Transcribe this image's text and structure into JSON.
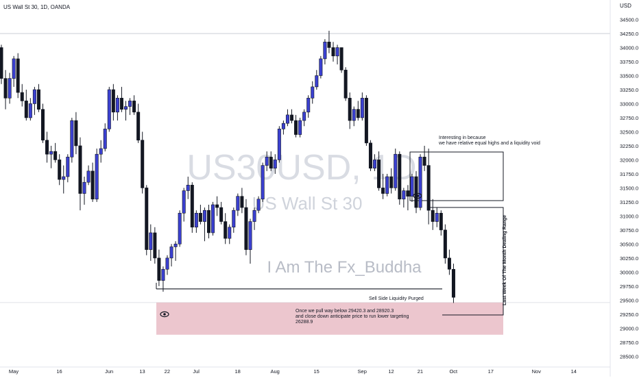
{
  "header": {
    "symbol_title": "US Wall St 30, 1D, OANDA"
  },
  "watermark": {
    "ticker": "US30USD, 1D",
    "name": "US Wall St 30",
    "author": "I Am The Fx_Buddha"
  },
  "price_axis": {
    "unit": "USD",
    "ticks": [
      "34500.0",
      "34250.0",
      "34000.0",
      "33750.0",
      "33500.0",
      "33250.0",
      "33000.0",
      "32750.0",
      "32500.0",
      "32250.0",
      "32000.0",
      "31750.0",
      "31500.0",
      "31250.0",
      "31000.0",
      "30750.0",
      "30500.0",
      "30250.0",
      "30000.0",
      "29750.0",
      "29500.0",
      "29250.0",
      "29000.0",
      "28750.0",
      "28500.0"
    ]
  },
  "time_axis": {
    "labels": [
      {
        "text": "May",
        "index": 0
      },
      {
        "text": "16",
        "index": 11
      },
      {
        "text": "Jun",
        "index": 23
      },
      {
        "text": "13",
        "index": 31
      },
      {
        "text": "22",
        "index": 37
      },
      {
        "text": "Jul",
        "index": 44
      },
      {
        "text": "18",
        "index": 54
      },
      {
        "text": "Aug",
        "index": 63
      },
      {
        "text": "15",
        "index": 73
      },
      {
        "text": "Sep",
        "index": 84
      },
      {
        "text": "12",
        "index": 91
      },
      {
        "text": "21",
        "index": 98
      },
      {
        "text": "Oct",
        "index": 106
      },
      {
        "text": "17",
        "index": 115
      },
      {
        "text": "Nov",
        "index": 126
      },
      {
        "text": "14",
        "index": 135
      }
    ]
  },
  "annotations": {
    "relative_highs_note": "Interesting in because\nwe have relative equal highs and a liquidity void",
    "sell_side_label": "Sell Side Liquidity Purged",
    "target_note": "Once we pull way below 29420.3 and 28920.3\nand close down anticipate price to run lower targeting\n26288.9",
    "vertical_label": "Last Week Of The Month Dealing Range"
  },
  "colors": {
    "bullish_candle": "#3b40d0",
    "bearish_candle": "#131722",
    "axis_text": "#131722",
    "zone_fill": "#e6b3bd",
    "line": "#131722",
    "watermark": "#b8bcc6"
  },
  "chart_data": {
    "type": "candlestick",
    "title": "US Wall St 30, 1D, OANDA",
    "ylabel": "USD",
    "ylim": [
      28400,
      34650
    ],
    "levels": {
      "sell_side_liquidity": 29700,
      "target_zone_top": 29420.3,
      "target_zone_bottom": 28920.3,
      "dealing_range_high": 31150,
      "dealing_range_low": 29300
    },
    "ohlc": [
      [
        34000,
        34050,
        33350,
        33450
      ],
      [
        33450,
        33600,
        32900,
        33100
      ],
      [
        33100,
        33550,
        33000,
        33450
      ],
      [
        33450,
        33850,
        33300,
        33800
      ],
      [
        33800,
        33900,
        33100,
        33200
      ],
      [
        33200,
        33350,
        32950,
        33050
      ],
      [
        33050,
        33250,
        32700,
        32750
      ],
      [
        32750,
        33100,
        32700,
        33000
      ],
      [
        33000,
        33300,
        32800,
        33250
      ],
      [
        33250,
        33350,
        32850,
        32900
      ],
      [
        32900,
        33000,
        32300,
        32350
      ],
      [
        32350,
        32500,
        31950,
        32100
      ],
      [
        32100,
        32250,
        31850,
        32150
      ],
      [
        32150,
        32300,
        31950,
        32000
      ],
      [
        32000,
        32100,
        31550,
        31650
      ],
      [
        31650,
        31900,
        31400,
        31700
      ],
      [
        31700,
        32100,
        31600,
        32050
      ],
      [
        32050,
        32750,
        31950,
        32700
      ],
      [
        32700,
        32850,
        32100,
        32250
      ],
      [
        32250,
        32400,
        31100,
        31400
      ],
      [
        31400,
        31700,
        31200,
        31600
      ],
      [
        31600,
        31900,
        31550,
        31800
      ],
      [
        31800,
        31950,
        31250,
        31300
      ],
      [
        31300,
        32200,
        31250,
        32100
      ],
      [
        32100,
        32350,
        31950,
        32200
      ],
      [
        32200,
        32650,
        32150,
        32550
      ],
      [
        32550,
        33300,
        32500,
        33250
      ],
      [
        33250,
        33350,
        32700,
        32850
      ],
      [
        32850,
        33150,
        32700,
        33100
      ],
      [
        33100,
        33300,
        32850,
        32900
      ],
      [
        32900,
        33050,
        32700,
        32950
      ],
      [
        32950,
        33100,
        32800,
        33050
      ],
      [
        33050,
        33150,
        32800,
        32850
      ],
      [
        32850,
        33000,
        32300,
        32350
      ],
      [
        32350,
        32500,
        31400,
        31500
      ],
      [
        31500,
        31550,
        30300,
        30400
      ],
      [
        30400,
        30850,
        30200,
        30700
      ],
      [
        30700,
        30800,
        30150,
        30250
      ],
      [
        30250,
        30400,
        29750,
        29850
      ],
      [
        29850,
        30100,
        29650,
        30050
      ],
      [
        30050,
        30300,
        29950,
        30250
      ],
      [
        30250,
        30500,
        30100,
        30450
      ],
      [
        30450,
        30550,
        30200,
        30500
      ],
      [
        30500,
        31100,
        30450,
        31050
      ],
      [
        31050,
        31500,
        30900,
        31450
      ],
      [
        31450,
        31700,
        31300,
        31550
      ],
      [
        31550,
        31600,
        30700,
        30800
      ],
      [
        30800,
        31100,
        30700,
        31050
      ],
      [
        31050,
        31200,
        30850,
        30900
      ],
      [
        30900,
        31150,
        30550,
        31100
      ],
      [
        31100,
        31200,
        30600,
        30700
      ],
      [
        30700,
        31250,
        30650,
        31200
      ],
      [
        31200,
        31350,
        31000,
        31150
      ],
      [
        31150,
        31250,
        30850,
        30900
      ],
      [
        30900,
        31050,
        30500,
        30600
      ],
      [
        30600,
        30850,
        30500,
        30800
      ],
      [
        30800,
        31150,
        30700,
        31100
      ],
      [
        31100,
        31400,
        31000,
        31350
      ],
      [
        31350,
        31500,
        31050,
        31150
      ],
      [
        31150,
        31300,
        30300,
        30400
      ],
      [
        30400,
        30950,
        30150,
        30900
      ],
      [
        30900,
        31150,
        30750,
        31100
      ],
      [
        31100,
        31350,
        31050,
        31300
      ],
      [
        31300,
        31950,
        31250,
        31900
      ],
      [
        31900,
        32150,
        31800,
        32050
      ],
      [
        32050,
        32150,
        31800,
        31850
      ],
      [
        31850,
        32100,
        31750,
        32000
      ],
      [
        32000,
        32600,
        31950,
        32550
      ],
      [
        32550,
        32700,
        32450,
        32650
      ],
      [
        32650,
        32900,
        32600,
        32800
      ],
      [
        32800,
        32900,
        32650,
        32700
      ],
      [
        32700,
        32800,
        32400,
        32450
      ],
      [
        32450,
        32750,
        32400,
        32700
      ],
      [
        32700,
        32900,
        32600,
        32850
      ],
      [
        32850,
        33150,
        32750,
        33100
      ],
      [
        33100,
        33400,
        33000,
        33300
      ],
      [
        33300,
        33600,
        33250,
        33500
      ],
      [
        33500,
        33850,
        33450,
        33800
      ],
      [
        33800,
        34150,
        33700,
        34100
      ],
      [
        34100,
        34300,
        33900,
        34000
      ],
      [
        34000,
        34100,
        33750,
        33850
      ],
      [
        33850,
        34050,
        33700,
        34000
      ],
      [
        34000,
        34000,
        33550,
        33600
      ],
      [
        33600,
        33650,
        33050,
        33100
      ]
    ]
  }
}
